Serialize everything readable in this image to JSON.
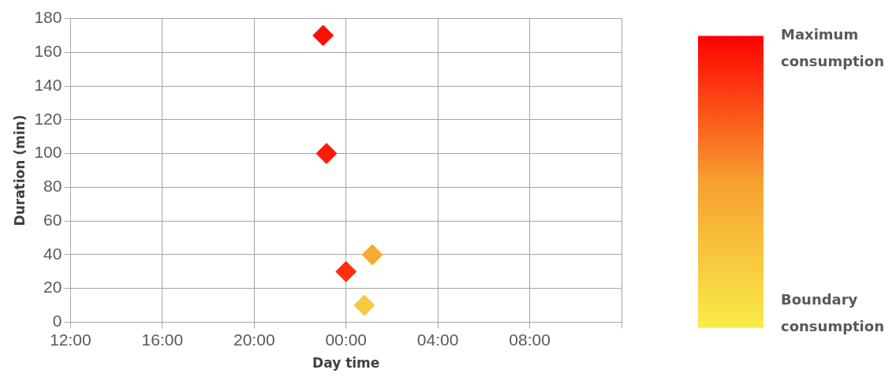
{
  "chart_data": {
    "type": "scatter",
    "xlabel": "Day time",
    "ylabel": "Duration (min)",
    "x": [
      "2000-01-01T23:00",
      "2000-01-01T23:09",
      "2000-01-02T00:00",
      "2000-01-02T01:09",
      "2000-01-02T00:48"
    ],
    "values": [
      170,
      100,
      30,
      40,
      10
    ],
    "cvalues": [
      1.0,
      0.96,
      0.89,
      0.42,
      0.2
    ],
    "clim": [
      0,
      1
    ],
    "cticks": [
      {
        "value": 1,
        "label": "Maximum consumption"
      },
      {
        "value": 0,
        "label": "Boundary consumption"
      }
    ],
    "xlim": [
      "2000-01-01T12:00",
      "2000-01-02T12:00"
    ],
    "xticks": [
      {
        "value": "2000-01-01T12:00",
        "label": "12:00"
      },
      {
        "value": "2000-01-01T16:00",
        "label": "16:00"
      },
      {
        "value": "2000-01-01T20:00",
        "label": "20:00"
      },
      {
        "value": "2000-01-02T00:00",
        "label": "00:00"
      },
      {
        "value": "2000-01-02T04:00",
        "label": "04:00"
      },
      {
        "value": "2000-01-02T08:00",
        "label": "08:00"
      },
      {
        "value": "2000-01-02T12:00",
        "label": null
      }
    ],
    "ylim": [
      0,
      180
    ],
    "yticks": [
      0,
      20,
      40,
      60,
      80,
      100,
      120,
      140,
      160,
      180
    ],
    "grid": true,
    "legend": false,
    "marker": "diamond"
  }
}
